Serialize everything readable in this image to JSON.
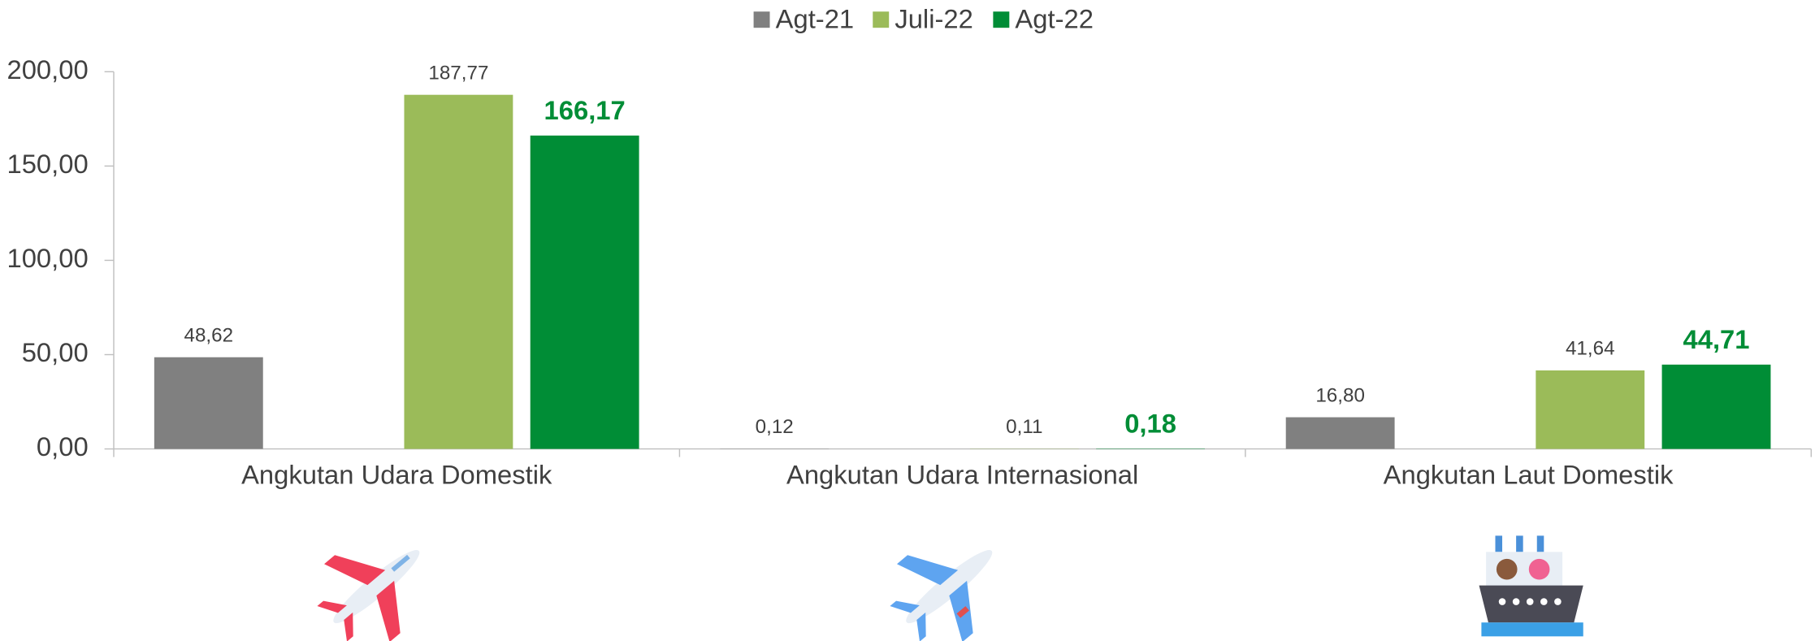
{
  "chart_data": {
    "type": "bar",
    "categories": [
      "Angkutan Udara Domestik",
      "Angkutan Udara Internasional",
      "Angkutan Laut Domestik"
    ],
    "series": [
      {
        "name": "Agt-21",
        "color": "#808080",
        "values": [
          48.62,
          0.12,
          16.8
        ],
        "value_labels": [
          "48,62",
          "0,12",
          "16,80"
        ]
      },
      {
        "name": "Juli-22",
        "color": "#9bbb59",
        "values": [
          187.77,
          0.11,
          41.64
        ],
        "value_labels": [
          "187,77",
          "0,11",
          "41,64"
        ]
      },
      {
        "name": "Agt-22",
        "color": "#008d36",
        "values": [
          166.17,
          0.18,
          44.71
        ],
        "value_labels": [
          "166,17",
          "0,18",
          "44,71"
        ]
      }
    ],
    "ylim": [
      0,
      200
    ],
    "yticks": [
      {
        "value": 0,
        "label": "0,00"
      },
      {
        "value": 50,
        "label": "50,00"
      },
      {
        "value": 100,
        "label": "100,00"
      },
      {
        "value": 150,
        "label": "150,00"
      },
      {
        "value": 200,
        "label": "200,00"
      }
    ],
    "legend": "top"
  }
}
